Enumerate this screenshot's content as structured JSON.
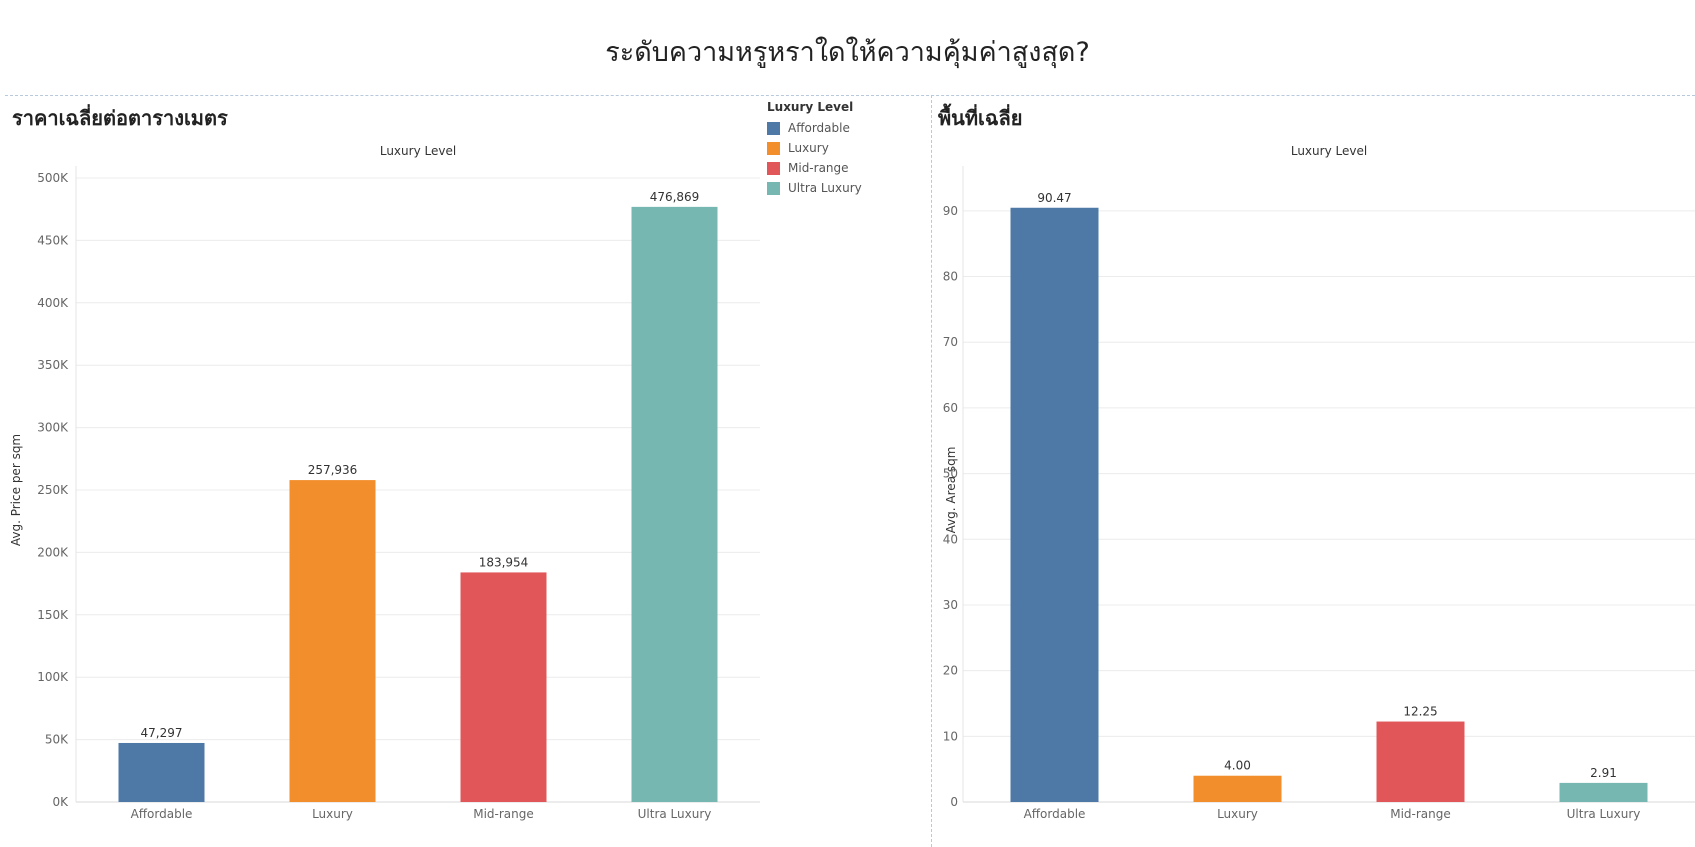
{
  "dashboard": {
    "title": "ระดับความหรูหราใดให้ความคุ้มค่าสูงสุด?"
  },
  "legend": {
    "title": "Luxury Level",
    "items": [
      {
        "label": "Affordable",
        "color": "#4e79a7"
      },
      {
        "label": "Luxury",
        "color": "#f28e2b"
      },
      {
        "label": "Mid-range",
        "color": "#e15759"
      },
      {
        "label": "Ultra Luxury",
        "color": "#76b7b2"
      }
    ]
  },
  "chart_data": [
    {
      "type": "bar",
      "title": "ราคาเฉลี่ยต่อตารางเมตร",
      "header": "Luxury Level",
      "ylabel": "Avg. Price per sqm",
      "categories": [
        "Affordable",
        "Luxury",
        "Mid-range",
        "Ultra Luxury"
      ],
      "values": [
        47297,
        257936,
        183954,
        476869
      ],
      "data_labels": [
        "47,297",
        "257,936",
        "183,954",
        "476,869"
      ],
      "colors": [
        "#4e79a7",
        "#f28e2b",
        "#e15759",
        "#76b7b2"
      ],
      "ylim": [
        0,
        500000
      ],
      "yticks": [
        0,
        50000,
        100000,
        150000,
        200000,
        250000,
        300000,
        350000,
        400000,
        450000,
        500000
      ],
      "ytick_labels": [
        "0K",
        "50K",
        "100K",
        "150K",
        "200K",
        "250K",
        "300K",
        "350K",
        "400K",
        "450K",
        "500K"
      ],
      "grid": true
    },
    {
      "type": "bar",
      "title": "พื้นที่เฉลี่ย",
      "header": "Luxury Level",
      "ylabel": "Avg. Area sqm",
      "categories": [
        "Affordable",
        "Luxury",
        "Mid-range",
        "Ultra Luxury"
      ],
      "values": [
        90.47,
        4.0,
        12.25,
        2.91
      ],
      "data_labels": [
        "90.47",
        "4.00",
        "12.25",
        "2.91"
      ],
      "colors": [
        "#4e79a7",
        "#f28e2b",
        "#e15759",
        "#76b7b2"
      ],
      "ylim": [
        0,
        95
      ],
      "yticks": [
        0,
        10,
        20,
        30,
        40,
        50,
        60,
        70,
        80,
        90
      ],
      "ytick_labels": [
        "0",
        "10",
        "20",
        "30",
        "40",
        "50",
        "60",
        "70",
        "80",
        "90"
      ],
      "grid": true
    }
  ]
}
